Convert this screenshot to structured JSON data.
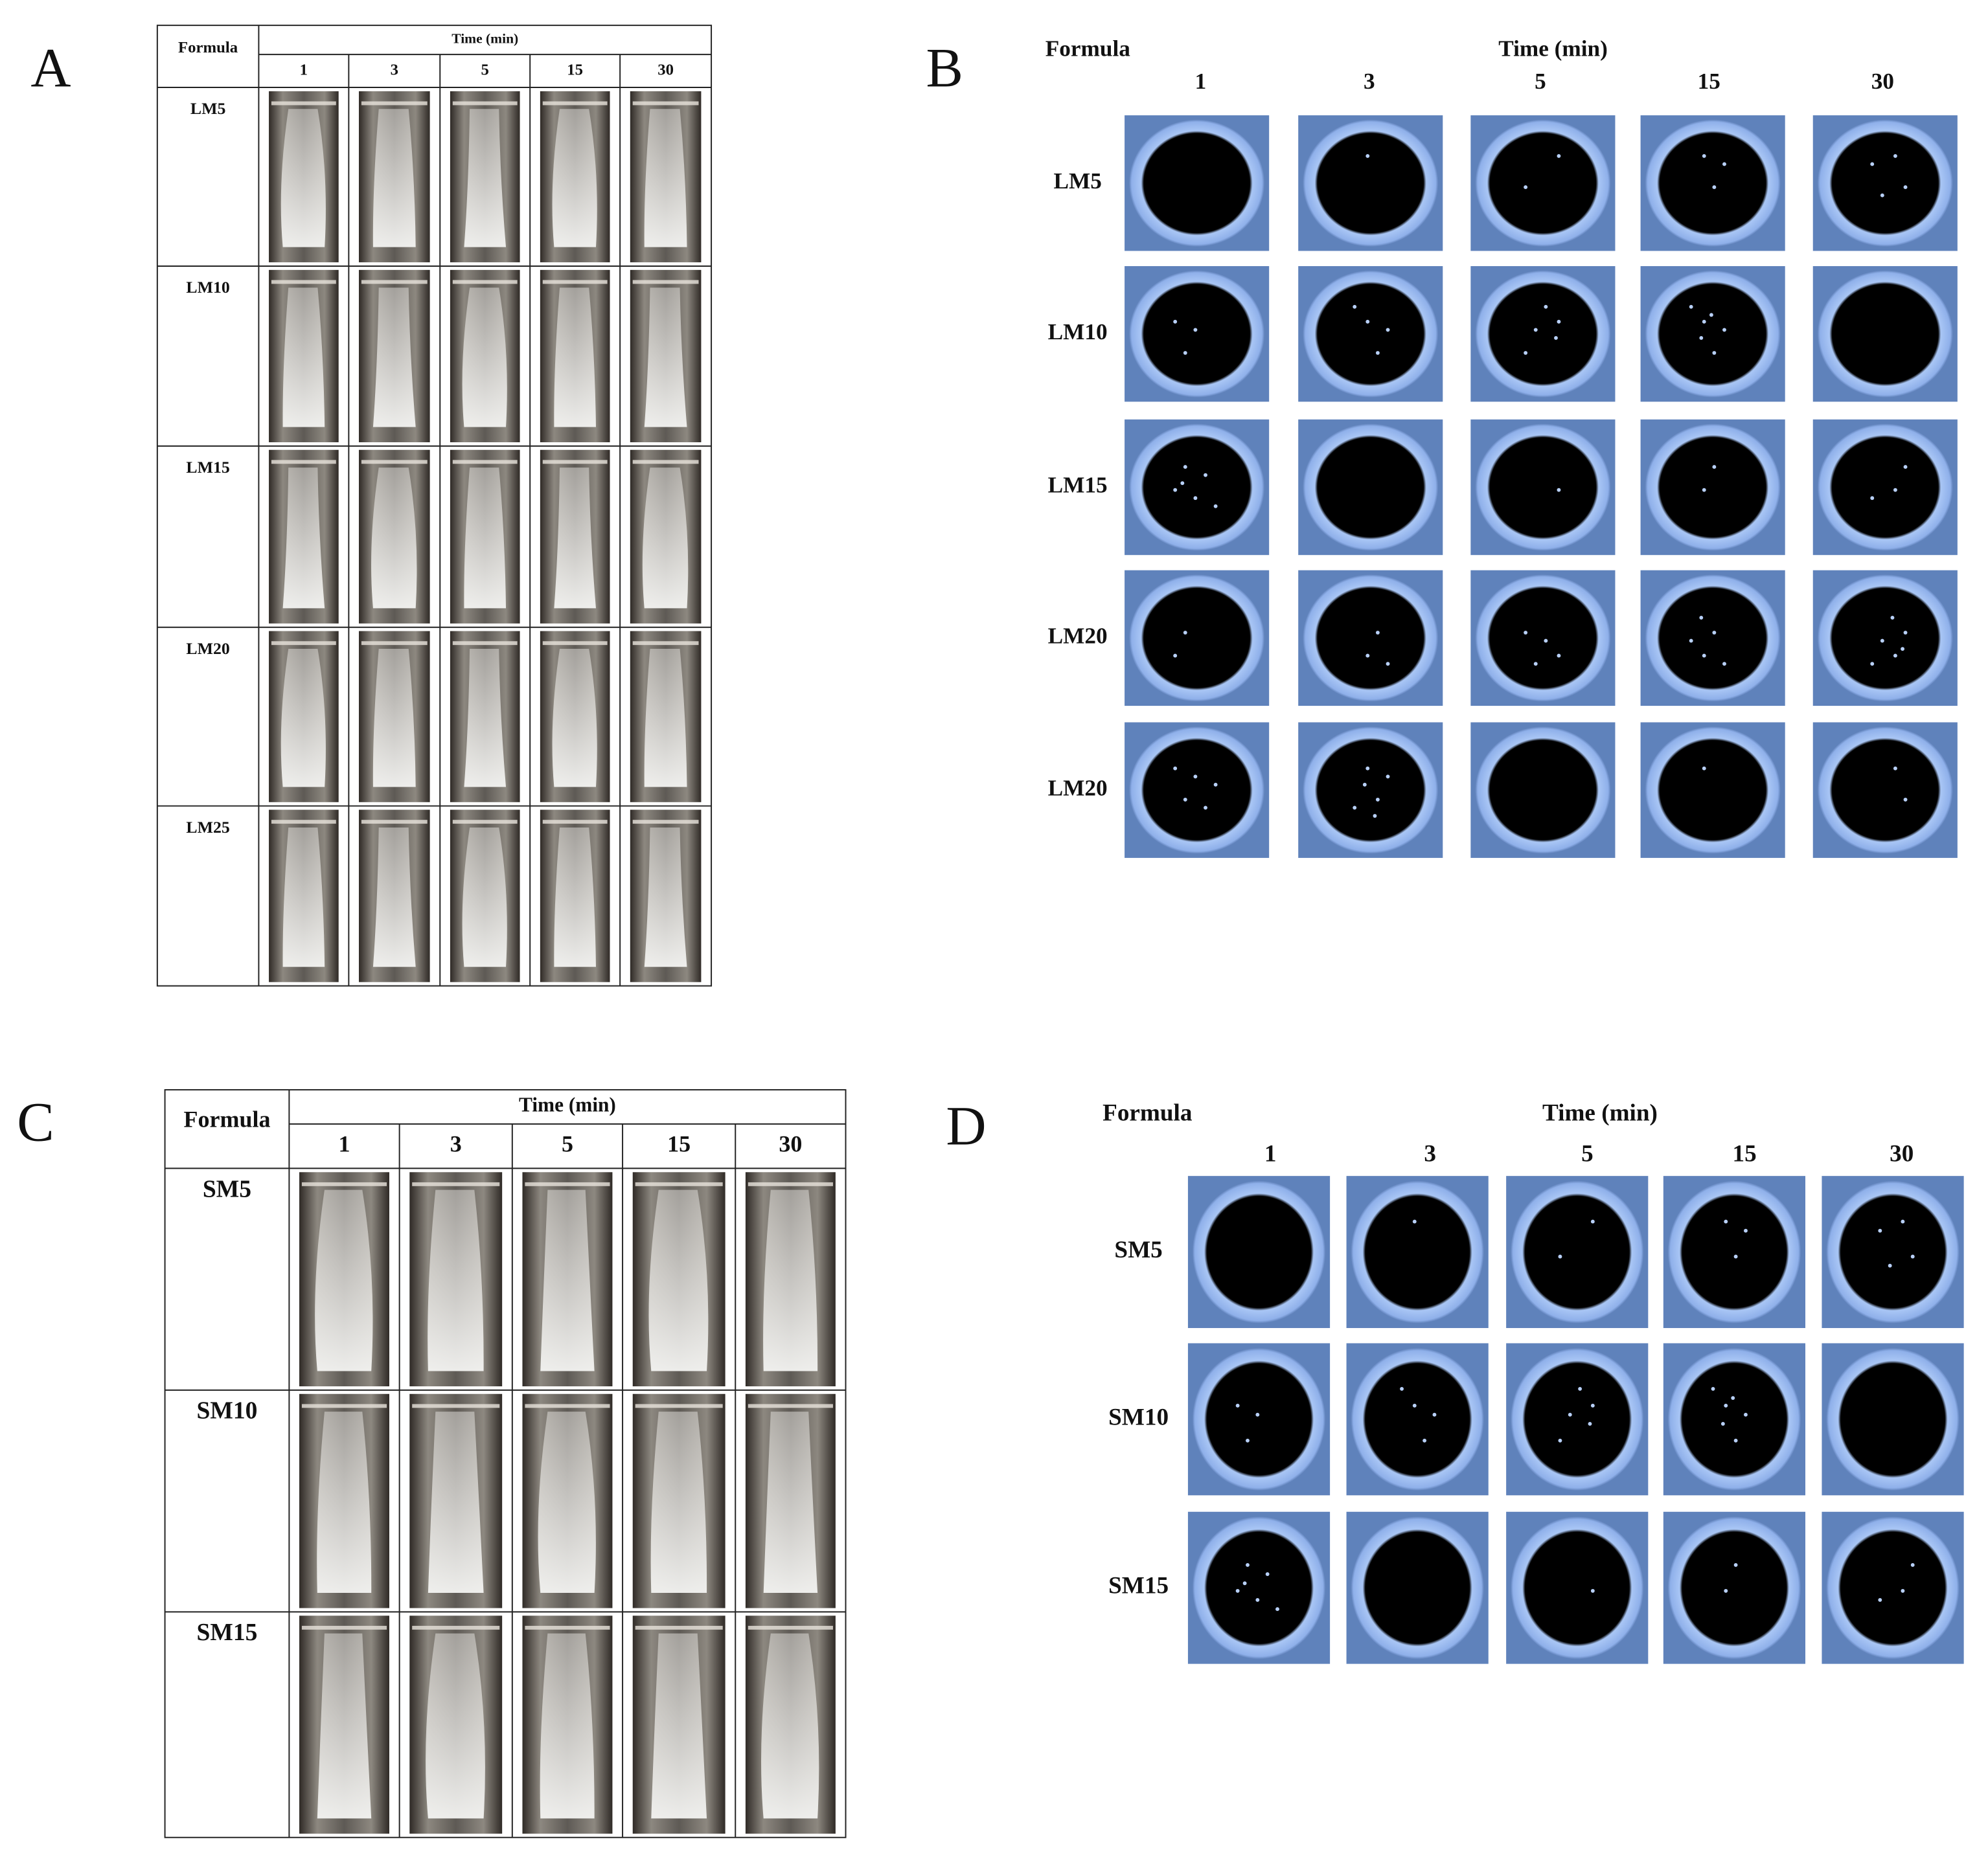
{
  "panels": [
    {
      "label": "A",
      "formula_header": "Formula",
      "time_header": "Time (min)",
      "times": [
        "1",
        "3",
        "5",
        "15",
        "30"
      ],
      "rows": [
        "LM5",
        "LM10",
        "LM15",
        "LM20",
        "LM25"
      ]
    },
    {
      "label": "B",
      "formula_header": "Formula",
      "time_header": "Time (min)",
      "times": [
        "1",
        "3",
        "5",
        "15",
        "30"
      ],
      "rows": [
        "LM5",
        "LM10",
        "LM15",
        "LM20",
        "LM20"
      ]
    },
    {
      "label": "C",
      "formula_header": "Formula",
      "time_header": "Time (min)",
      "times": [
        "1",
        "3",
        "5",
        "15",
        "30"
      ],
      "rows": [
        "SM5",
        "SM10",
        "SM15"
      ]
    },
    {
      "label": "D",
      "formula_header": "Formula",
      "time_header": "Time (min)",
      "times": [
        "1",
        "3",
        "5",
        "15",
        "30"
      ],
      "rows": [
        "SM5",
        "SM10",
        "SM15"
      ]
    }
  ]
}
